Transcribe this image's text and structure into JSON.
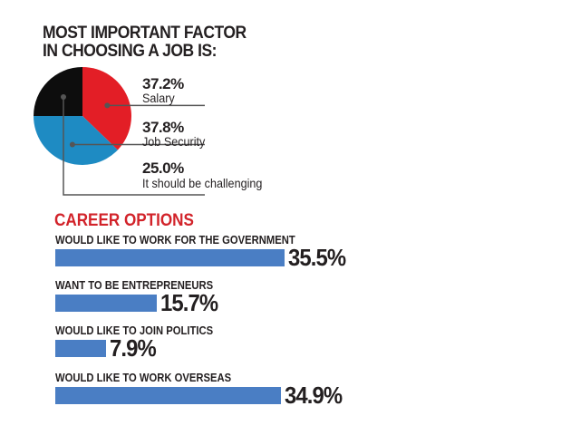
{
  "chart_data": [
    {
      "type": "pie",
      "title": "MOST IMPORTANT FACTOR IN CHOOSING A JOB IS:",
      "slices": [
        {
          "label": "Salary",
          "value": 37.2,
          "value_label": "37.2%",
          "color": "#e31e26"
        },
        {
          "label": "Job Security",
          "value": 37.8,
          "value_label": "37.8%",
          "color": "#1e8bc3"
        },
        {
          "label": "It should be challenging",
          "value": 25.0,
          "value_label": "25.0%",
          "color": "#0d0d0d"
        }
      ]
    },
    {
      "type": "bar",
      "orientation": "horizontal",
      "title": "CAREER OPTIONS",
      "title_color": "#d2232a",
      "bar_color": "#4a7ec4",
      "categories": [
        "WOULD LIKE TO WORK FOR THE GOVERNMENT",
        "WANT TO BE ENTREPRENEURS",
        "WOULD LIKE TO JOIN POLITICS",
        "WOULD LIKE TO WORK OVERSEAS"
      ],
      "values": [
        35.5,
        15.7,
        7.9,
        34.9
      ],
      "value_labels": [
        "35.5%",
        "15.7%",
        "7.9%",
        "34.9%"
      ]
    }
  ]
}
